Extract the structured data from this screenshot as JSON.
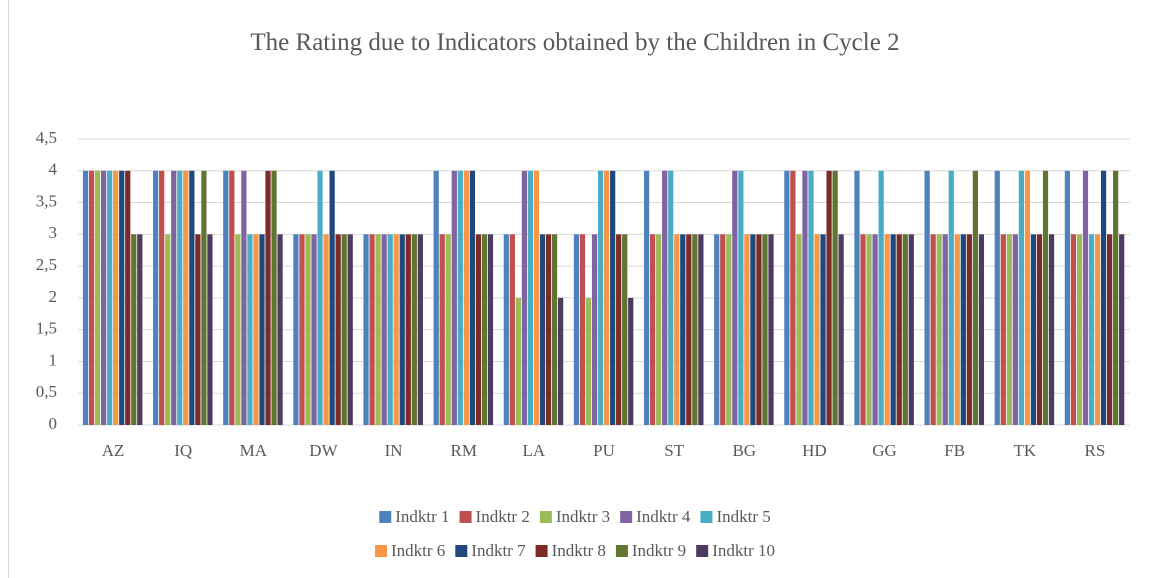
{
  "chart_data": {
    "type": "bar",
    "title": "The Rating due to Indicators obtained by the Children in Cycle 2",
    "categories": [
      "AZ",
      "IQ",
      "MA",
      "DW",
      "IN",
      "RM",
      "LA",
      "PU",
      "ST",
      "BG",
      "HD",
      "GG",
      "FB",
      "TK",
      "RS"
    ],
    "series": [
      {
        "name": "Indktr 1",
        "color": "#4f81bd",
        "values": [
          4,
          4,
          4,
          3,
          3,
          4,
          3,
          3,
          4,
          3,
          4,
          4,
          4,
          4,
          4
        ]
      },
      {
        "name": "Indktr 2",
        "color": "#c0504d",
        "values": [
          4,
          4,
          4,
          3,
          3,
          3,
          3,
          3,
          3,
          3,
          4,
          3,
          3,
          3,
          3
        ]
      },
      {
        "name": "Indktr 3",
        "color": "#9bbb59",
        "values": [
          4,
          3,
          3,
          3,
          3,
          3,
          2,
          2,
          3,
          3,
          3,
          3,
          3,
          3,
          3
        ]
      },
      {
        "name": "Indktr 4",
        "color": "#8064a2",
        "values": [
          4,
          4,
          4,
          3,
          3,
          4,
          4,
          3,
          4,
          4,
          4,
          3,
          3,
          3,
          4
        ]
      },
      {
        "name": "Indktr 5",
        "color": "#4bacc6",
        "values": [
          4,
          4,
          3,
          4,
          3,
          4,
          4,
          4,
          4,
          4,
          4,
          4,
          4,
          4,
          3
        ]
      },
      {
        "name": "Indktr 6",
        "color": "#f79646",
        "values": [
          4,
          4,
          3,
          3,
          3,
          4,
          4,
          4,
          3,
          3,
          3,
          3,
          3,
          4,
          3
        ]
      },
      {
        "name": "Indktr 7",
        "color": "#1f497d",
        "values": [
          4,
          4,
          3,
          4,
          3,
          4,
          3,
          4,
          3,
          3,
          3,
          3,
          3,
          3,
          4
        ]
      },
      {
        "name": "Indktr 8",
        "color": "#7b2c26",
        "values": [
          4,
          3,
          4,
          3,
          3,
          3,
          3,
          3,
          3,
          3,
          4,
          3,
          3,
          3,
          3
        ]
      },
      {
        "name": "Indktr 9",
        "color": "#5f7530",
        "values": [
          3,
          4,
          4,
          3,
          3,
          3,
          3,
          3,
          3,
          3,
          4,
          3,
          4,
          4,
          4
        ]
      },
      {
        "name": "Indktr 10",
        "color": "#4d3b62",
        "values": [
          3,
          3,
          3,
          3,
          3,
          3,
          2,
          2,
          3,
          3,
          3,
          3,
          3,
          3,
          3
        ]
      }
    ],
    "ylim": [
      0,
      4.5
    ],
    "yticks": [
      0,
      {
        "value": 0.5,
        "label": "0,5"
      },
      1,
      {
        "value": 1.5,
        "label": "1,5"
      },
      2,
      {
        "value": 2.5,
        "label": "2,5"
      },
      3,
      {
        "value": 3.5,
        "label": "3,5"
      },
      4,
      {
        "value": 4.5,
        "label": "4,5"
      }
    ],
    "grid": true,
    "legend": "bottom"
  }
}
